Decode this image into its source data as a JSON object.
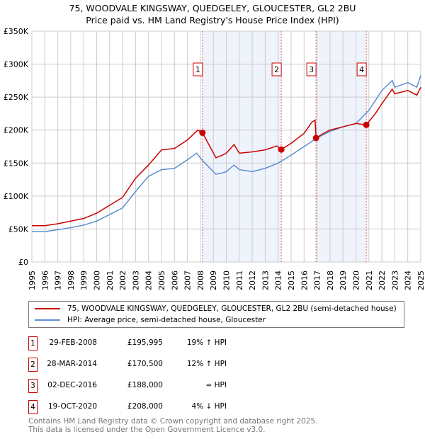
{
  "chart_data": {
    "type": "line",
    "title": "75, WOODVALE KINGSWAY, QUEDGELEY, GLOUCESTER, GL2 2BU",
    "subtitle": "Price paid vs. HM Land Registry's House Price Index (HPI)",
    "xlim": [
      1995,
      2025
    ],
    "ylim": [
      0,
      350000
    ],
    "y_ticks": [
      0,
      50000,
      100000,
      150000,
      200000,
      250000,
      300000,
      350000
    ],
    "y_tick_labels": [
      "£0",
      "£50K",
      "£100K",
      "£150K",
      "£200K",
      "£250K",
      "£300K",
      "£350K"
    ],
    "x_ticks": [
      1995,
      1996,
      1997,
      1998,
      1999,
      2000,
      2001,
      2002,
      2003,
      2004,
      2005,
      2006,
      2007,
      2008,
      2009,
      2010,
      2011,
      2012,
      2013,
      2014,
      2015,
      2016,
      2017,
      2018,
      2019,
      2020,
      2021,
      2022,
      2023,
      2024,
      2025
    ],
    "grid": true,
    "shaded_ranges": [
      [
        2008.16,
        2014.24
      ],
      [
        2016.92,
        2020.8
      ]
    ],
    "series": [
      {
        "name": "75, WOODVALE KINGSWAY, QUEDGELEY, GLOUCESTER, GL2 2BU (semi-detached house)",
        "color": "#cc0000",
        "x": [
          1995,
          1996,
          1997,
          1998,
          1999,
          2000,
          2001,
          2002,
          2003,
          2004,
          2005,
          2006,
          2007,
          2007.8,
          2008.16,
          2008.6,
          2009.2,
          2009.7,
          2010,
          2010.6,
          2011,
          2012,
          2013,
          2013.9,
          2014.24,
          2015,
          2016,
          2016.6,
          2016.85,
          2016.92,
          2017.5,
          2018,
          2019,
          2020,
          2020.8,
          2021,
          2021.5,
          2022,
          2022.8,
          2023,
          2024,
          2024.7,
          2025
        ],
        "y": [
          55000,
          55000,
          58000,
          62000,
          66000,
          74000,
          86000,
          98000,
          127000,
          147000,
          170000,
          172000,
          185000,
          200000,
          196000,
          180000,
          158000,
          162000,
          165000,
          178000,
          165000,
          167000,
          170000,
          176000,
          170500,
          180000,
          195000,
          212000,
          215000,
          188000,
          195000,
          200000,
          205000,
          210000,
          208000,
          213000,
          225000,
          240000,
          262000,
          255000,
          260000,
          253000,
          265000
        ]
      },
      {
        "name": "HPI: Average price, semi-detached house, Gloucester",
        "color": "#5b8fd0",
        "x": [
          1995,
          1996,
          1997,
          1998,
          1999,
          2000,
          2001,
          2002,
          2003,
          2004,
          2005,
          2006,
          2007,
          2007.7,
          2008.2,
          2008.6,
          2009.2,
          2009.7,
          2010,
          2010.6,
          2011,
          2012,
          2013,
          2014,
          2015,
          2016,
          2017,
          2018,
          2019,
          2020,
          2021,
          2021.5,
          2022,
          2022.8,
          2023,
          2024,
          2024.7,
          2025
        ],
        "y": [
          46000,
          46000,
          49000,
          52000,
          56000,
          62000,
          72000,
          82000,
          107000,
          130000,
          140000,
          142000,
          155000,
          165000,
          153000,
          145000,
          133000,
          135000,
          137000,
          147000,
          140000,
          137000,
          142000,
          150000,
          162000,
          175000,
          188000,
          198000,
          205000,
          210000,
          230000,
          245000,
          260000,
          275000,
          265000,
          272000,
          265000,
          283000
        ]
      }
    ],
    "markers": [
      {
        "label": "1",
        "x": 2008.16,
        "y": 195995
      },
      {
        "label": "2",
        "x": 2014.24,
        "y": 170500
      },
      {
        "label": "3",
        "x": 2016.92,
        "y": 188000
      },
      {
        "label": "4",
        "x": 2020.8,
        "y": 208000
      }
    ]
  },
  "transactions": [
    {
      "num": "1",
      "date": "29-FEB-2008",
      "price": "£195,995",
      "relation": "19% ↑ HPI"
    },
    {
      "num": "2",
      "date": "28-MAR-2014",
      "price": "£170,500",
      "relation": "12% ↑ HPI"
    },
    {
      "num": "3",
      "date": "02-DEC-2016",
      "price": "£188,000",
      "relation": "≈ HPI"
    },
    {
      "num": "4",
      "date": "19-OCT-2020",
      "price": "£208,000",
      "relation": "4% ↓ HPI"
    }
  ],
  "footer": {
    "line1": "Contains HM Land Registry data © Crown copyright and database right 2025.",
    "line2": "This data is licensed under the Open Government Licence v3.0."
  }
}
